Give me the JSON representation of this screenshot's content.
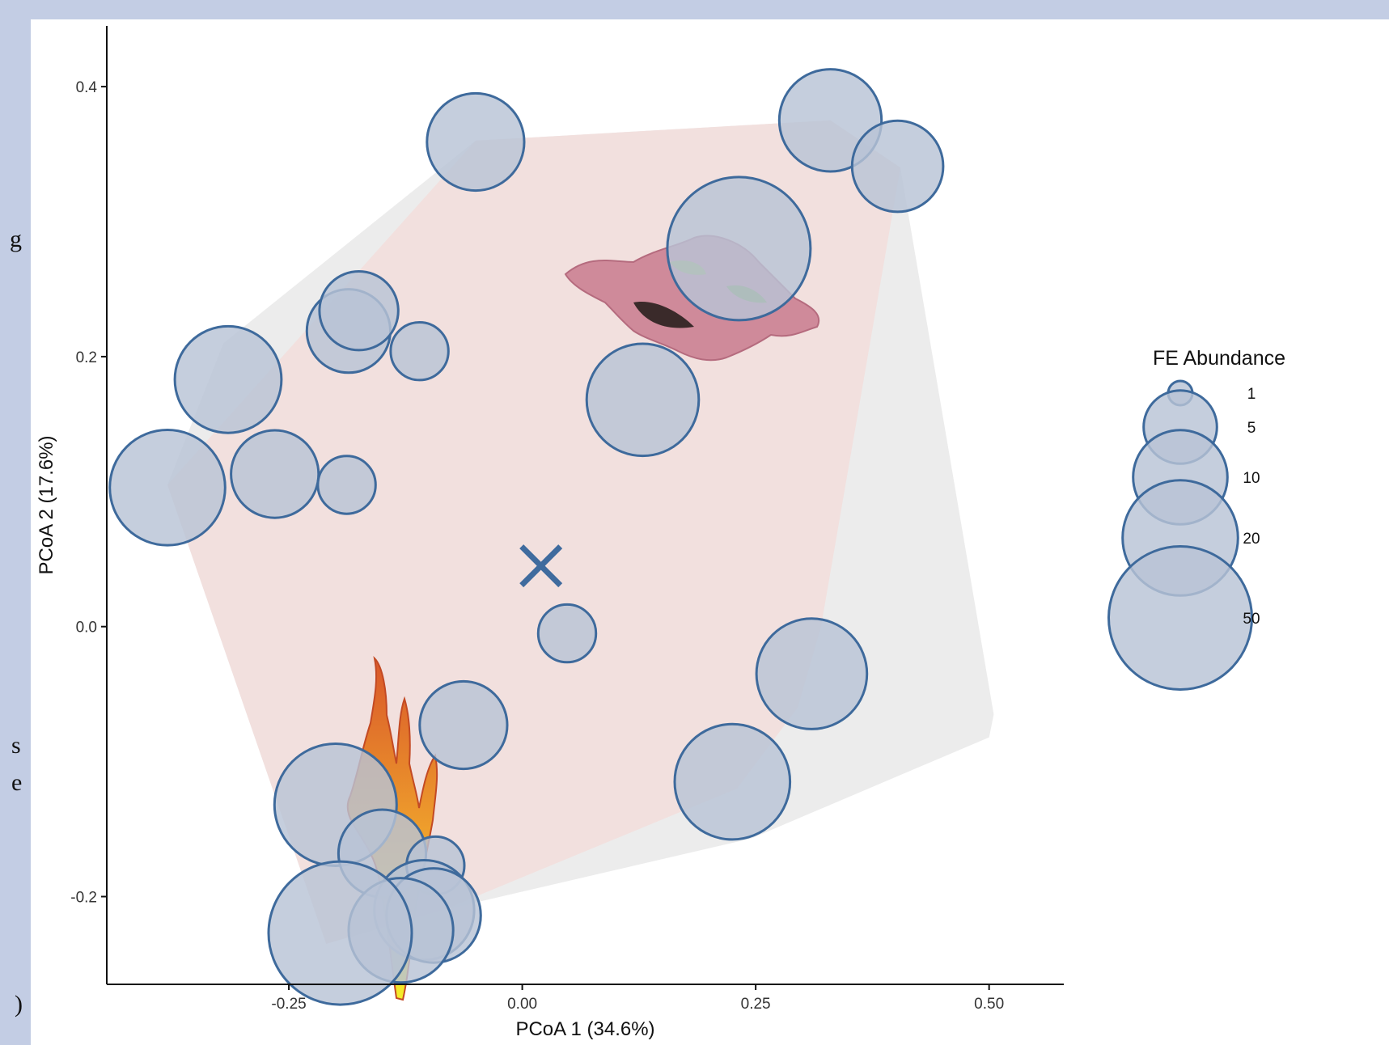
{
  "colors": {
    "point_fill": "#b8c3d5",
    "point_stroke": "#3e6a9c",
    "hull_outer": "#ececec",
    "hull_inner": "#f2e0de",
    "centroid": "#3f6b9e",
    "frame": "#c3cde4"
  },
  "edge_glyphs": [
    "g",
    "s",
    "e",
    ")"
  ],
  "chart_data": {
    "type": "scatter",
    "xlabel": "PCoA 1 (34.6%)",
    "ylabel": "PCoA 2 (17.6%)",
    "xlim": [
      -0.445,
      0.58
    ],
    "ylim": [
      -0.265,
      0.445
    ],
    "xticks": [
      -0.25,
      0.0,
      0.25,
      0.5
    ],
    "xtick_labels": [
      "-0.25",
      "0.00",
      "0.25",
      "0.50"
    ],
    "yticks": [
      -0.2,
      0.0,
      0.2,
      0.4
    ],
    "ytick_labels": [
      "-0.2",
      "0.0",
      "0.2",
      "0.4"
    ],
    "grid": false,
    "legend": {
      "title": "FE Abundance",
      "position": "right",
      "sizes": [
        1,
        5,
        10,
        20,
        50
      ],
      "labels": [
        "1",
        "5",
        "10",
        "20",
        "50"
      ]
    },
    "centroid": {
      "x": 0.02,
      "y": 0.045,
      "marker": "x"
    },
    "hull_outer": [
      [
        -0.38,
        0.105
      ],
      [
        -0.32,
        0.21
      ],
      [
        -0.05,
        0.36
      ],
      [
        0.33,
        0.375
      ],
      [
        0.405,
        0.34
      ],
      [
        0.505,
        -0.065
      ],
      [
        0.5,
        -0.082
      ],
      [
        0.245,
        -0.157
      ],
      [
        -0.085,
        -0.21
      ],
      [
        -0.21,
        -0.235
      ]
    ],
    "hull_inner": [
      [
        -0.38,
        0.105
      ],
      [
        -0.05,
        0.36
      ],
      [
        0.33,
        0.375
      ],
      [
        0.405,
        0.34
      ],
      [
        0.32,
        0.0
      ],
      [
        0.295,
        -0.06
      ],
      [
        0.23,
        -0.12
      ],
      [
        -0.085,
        -0.21
      ],
      [
        -0.21,
        -0.235
      ]
    ],
    "points": [
      {
        "x": -0.38,
        "y": 0.103,
        "size": 20
      },
      {
        "x": -0.315,
        "y": 0.183,
        "size": 15
      },
      {
        "x": -0.265,
        "y": 0.113,
        "size": 8
      },
      {
        "x": -0.188,
        "y": 0.105,
        "size": 3
      },
      {
        "x": -0.186,
        "y": 0.219,
        "size": 7
      },
      {
        "x": -0.175,
        "y": 0.234,
        "size": 6
      },
      {
        "x": -0.11,
        "y": 0.204,
        "size": 3
      },
      {
        "x": -0.05,
        "y": 0.359,
        "size": 11
      },
      {
        "x": 0.33,
        "y": 0.375,
        "size": 13
      },
      {
        "x": 0.402,
        "y": 0.341,
        "size": 9
      },
      {
        "x": 0.232,
        "y": 0.28,
        "size": 50
      },
      {
        "x": 0.129,
        "y": 0.168,
        "size": 18
      },
      {
        "x": 0.048,
        "y": -0.005,
        "size": 3
      },
      {
        "x": 0.31,
        "y": -0.035,
        "size": 17
      },
      {
        "x": 0.225,
        "y": -0.115,
        "size": 20
      },
      {
        "x": -0.063,
        "y": -0.073,
        "size": 8
      },
      {
        "x": -0.2,
        "y": -0.132,
        "size": 25
      },
      {
        "x": -0.15,
        "y": -0.168,
        "size": 8
      },
      {
        "x": -0.093,
        "y": -0.177,
        "size": 3
      },
      {
        "x": -0.105,
        "y": -0.21,
        "size": 12
      },
      {
        "x": -0.095,
        "y": -0.214,
        "size": 10
      },
      {
        "x": -0.13,
        "y": -0.225,
        "size": 14
      },
      {
        "x": -0.195,
        "y": -0.227,
        "size": 50
      }
    ]
  }
}
